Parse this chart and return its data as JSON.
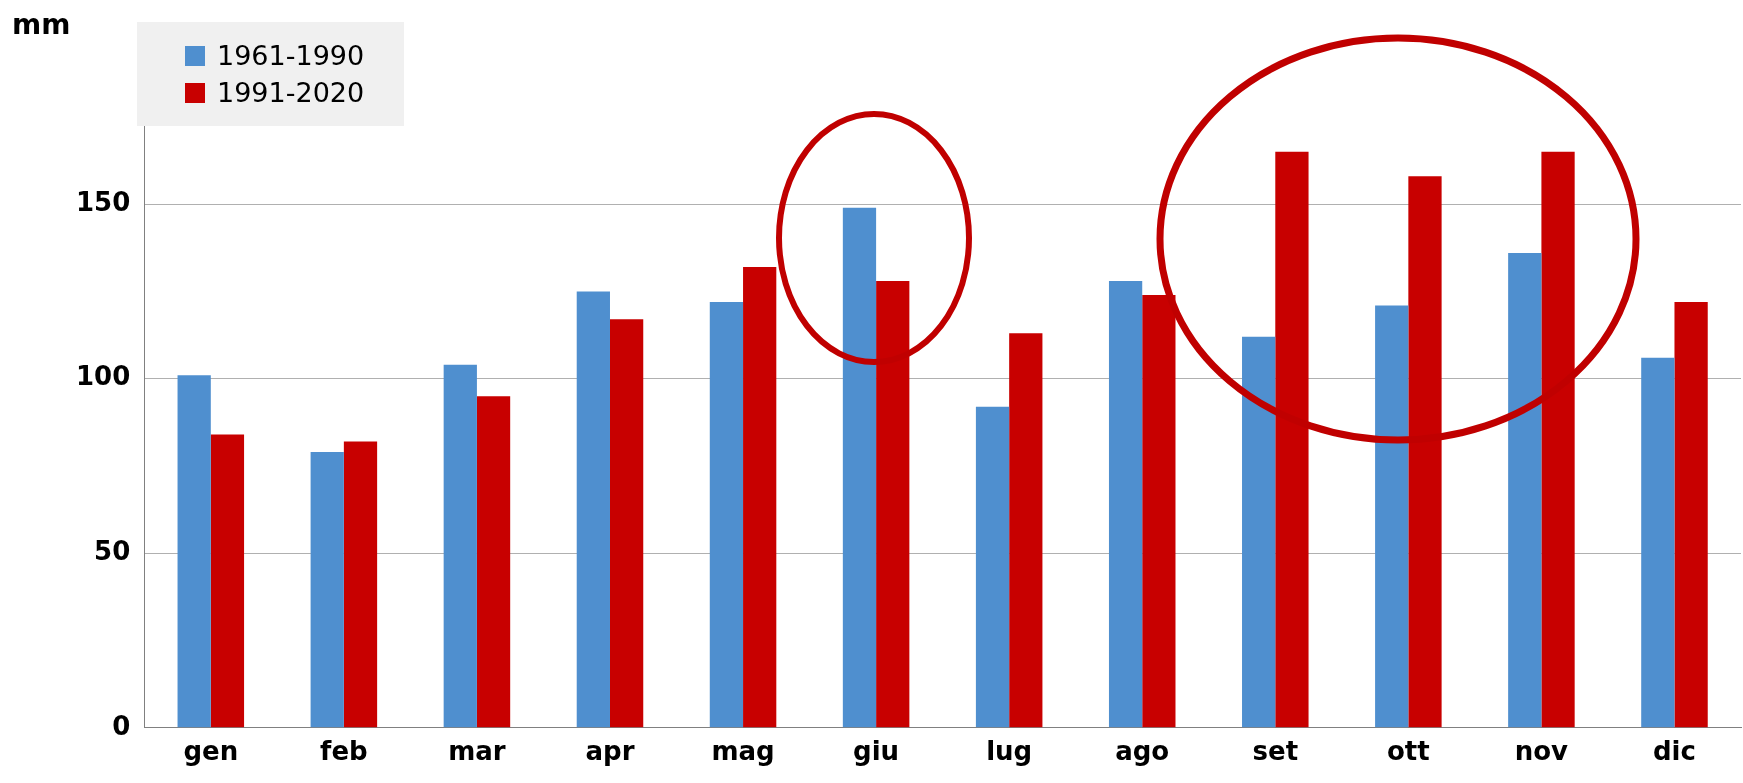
{
  "chart_data": {
    "type": "bar",
    "ylabel": "mm",
    "categories": [
      "gen",
      "feb",
      "mar",
      "apr",
      "mag",
      "giu",
      "lug",
      "ago",
      "set",
      "ott",
      "nov",
      "dic"
    ],
    "series": [
      {
        "name": "1961-1990",
        "color": "#4f8fcf",
        "values": [
          101,
          79,
          104,
          125,
          122,
          149,
          92,
          128,
          112,
          121,
          136,
          106
        ]
      },
      {
        "name": "1991-2020",
        "color": "#c80000",
        "values": [
          84,
          82,
          95,
          117,
          132,
          128,
          113,
          124,
          165,
          158,
          165,
          122
        ]
      }
    ],
    "ylim": [
      0,
      200
    ],
    "yticks": [
      0,
      50,
      100,
      150
    ],
    "grid": "y",
    "legend": "top left"
  }
}
